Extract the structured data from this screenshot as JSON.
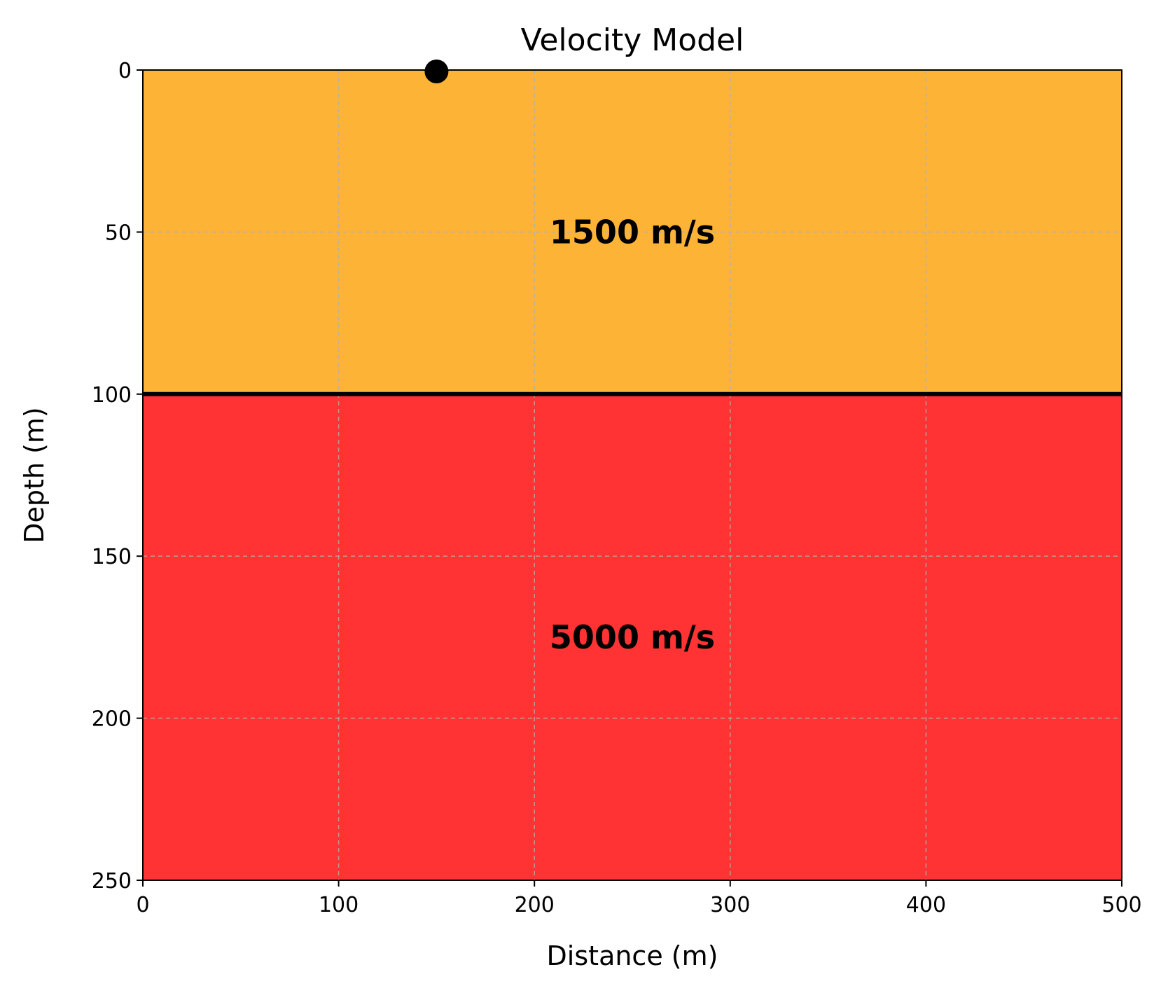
{
  "chart_data": {
    "type": "area",
    "title": "Velocity Model",
    "xlabel": "Distance (m)",
    "ylabel": "Depth (m)",
    "xlim": [
      0,
      500
    ],
    "ylim": [
      250,
      0
    ],
    "y_inverted": true,
    "grid": true,
    "x_ticks": [
      "0",
      "100",
      "200",
      "300",
      "400",
      "500"
    ],
    "y_ticks": [
      "0",
      "50",
      "100",
      "150",
      "200",
      "250"
    ],
    "layers": [
      {
        "label": "1500 m/s",
        "velocity": 1500,
        "top": 0,
        "bottom": 100,
        "color": "#FDB436",
        "label_x": 250,
        "label_y": 50
      },
      {
        "label": "5000 m/s",
        "velocity": 5000,
        "top": 100,
        "bottom": 250,
        "color": "#FF3333",
        "label_x": 250,
        "label_y": 175
      }
    ],
    "interface_depth": 100,
    "source_point": {
      "x": 150,
      "y": 0,
      "color": "#000000"
    }
  }
}
